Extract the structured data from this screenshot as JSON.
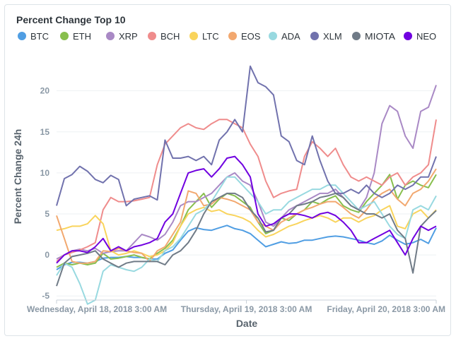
{
  "chart_data": {
    "type": "line",
    "title": "Percent Change Top 10",
    "xlabel": "Date",
    "ylabel": "Percent Change 24h",
    "ylim": [
      -5.5,
      23.5
    ],
    "y_ticks": [
      -5,
      0,
      5,
      10,
      15,
      20
    ],
    "x_ticks": [
      {
        "x": 0,
        "label": "Wednesday, April 18, 2018 3:00 AM"
      },
      {
        "x": 24,
        "label": "Thursday, April 19, 2018 3:00 AM"
      },
      {
        "x": 48,
        "label": "Friday, April 20, 2018 3:00 AM"
      }
    ],
    "x_range": [
      0,
      48
    ],
    "grid": true,
    "legend_position": "top",
    "series": [
      {
        "name": "BTC",
        "color": "#509ee3",
        "values": [
          -1.8,
          -1.2,
          -0.9,
          -0.9,
          -1.0,
          -0.8,
          -0.4,
          -0.3,
          -0.3,
          -0.2,
          -0.3,
          -0.3,
          -0.5,
          -0.5,
          0.2,
          0.6,
          1.8,
          2.9,
          3.3,
          3.1,
          3.0,
          3.3,
          3.6,
          3.2,
          3.0,
          2.6,
          1.8,
          1.0,
          1.3,
          1.6,
          1.4,
          1.5,
          1.8,
          1.8,
          2.0,
          2.2,
          2.3,
          2.2,
          2.0,
          1.8,
          1.5,
          1.3,
          1.7,
          2.4,
          1.8,
          1.3,
          1.5,
          1.9,
          1.4,
          3.3
        ]
      },
      {
        "name": "ETH",
        "color": "#88bf4d",
        "values": [
          -1.5,
          -1.0,
          -1.2,
          -1.0,
          -1.2,
          -1.0,
          0.2,
          -0.5,
          -0.4,
          -0.2,
          0.0,
          -0.3,
          -0.5,
          0.2,
          0.8,
          1.8,
          3.5,
          5.5,
          6.5,
          7.5,
          5.8,
          6.8,
          7.5,
          7.2,
          6.5,
          5.8,
          4.0,
          2.6,
          3.0,
          4.5,
          4.2,
          5.0,
          5.5,
          6.5,
          6.2,
          6.8,
          7.2,
          6.0,
          5.5,
          5.2,
          6.5,
          7.5,
          8.5,
          9.8,
          6.8,
          8.5,
          9.0,
          8.5,
          8.2,
          9.8
        ]
      },
      {
        "name": "XRP",
        "color": "#a989c5",
        "values": [
          -0.5,
          0.0,
          0.5,
          0.7,
          0.5,
          0.8,
          0.2,
          0.4,
          0.5,
          0.5,
          1.5,
          2.5,
          2.2,
          1.8,
          2.5,
          4.0,
          6.0,
          6.5,
          6.5,
          7.0,
          7.5,
          8.5,
          9.5,
          10.0,
          9.0,
          8.5,
          6.5,
          4.0,
          3.5,
          4.5,
          5.5,
          6.0,
          6.5,
          7.0,
          7.5,
          7.5,
          8.0,
          7.0,
          6.0,
          5.5,
          7.0,
          10.0,
          16.0,
          18.2,
          17.5,
          14.5,
          13.0,
          17.5,
          18.0,
          20.7
        ]
      },
      {
        "name": "BCH",
        "color": "#ef8c8c",
        "values": [
          -0.8,
          0.0,
          0.3,
          0.6,
          1.0,
          1.5,
          5.5,
          7.0,
          6.5,
          6.5,
          6.6,
          6.8,
          7.0,
          11.0,
          13.5,
          14.5,
          15.5,
          16.0,
          15.5,
          15.3,
          16.0,
          16.5,
          16.5,
          16.0,
          15.5,
          13.5,
          12.0,
          9.0,
          7.0,
          7.5,
          7.8,
          8.0,
          12.0,
          13.8,
          13.0,
          12.0,
          13.0,
          11.0,
          9.5,
          9.0,
          9.5,
          9.0,
          8.5,
          9.5,
          10.0,
          8.5,
          9.5,
          10.0,
          11.0,
          16.5
        ]
      },
      {
        "name": "LTC",
        "color": "#f9d45c",
        "values": [
          3.0,
          3.2,
          3.5,
          3.5,
          3.8,
          4.8,
          3.8,
          0.5,
          0.0,
          0.2,
          0.5,
          0.2,
          -0.2,
          0.0,
          0.5,
          1.5,
          3.5,
          5.0,
          5.5,
          5.8,
          5.3,
          5.5,
          5.0,
          4.8,
          4.5,
          4.0,
          3.0,
          2.2,
          2.5,
          3.0,
          3.5,
          3.8,
          4.2,
          4.5,
          4.8,
          4.5,
          4.0,
          4.5,
          4.5,
          4.0,
          4.5,
          4.8,
          5.5,
          6.0,
          3.5,
          3.2,
          5.0,
          5.5,
          4.5,
          5.5
        ]
      },
      {
        "name": "EOS",
        "color": "#f2a86f",
        "values": [
          4.8,
          2.0,
          -0.8,
          -1.0,
          -1.0,
          -0.8,
          0.5,
          0.4,
          0.8,
          0.5,
          0.3,
          0.2,
          -0.8,
          0.5,
          1.0,
          2.5,
          4.0,
          7.8,
          7.5,
          6.0,
          6.2,
          7.0,
          6.8,
          6.5,
          6.0,
          5.5,
          4.0,
          3.5,
          3.0,
          4.0,
          4.5,
          5.0,
          5.5,
          5.8,
          6.2,
          6.5,
          6.5,
          5.8,
          5.0,
          4.5,
          5.5,
          6.8,
          7.5,
          8.0,
          6.8,
          6.0,
          7.5,
          8.0,
          9.0,
          10.5
        ]
      },
      {
        "name": "ADA",
        "color": "#98d9e0",
        "values": [
          -2.5,
          -1.0,
          -1.5,
          -3.5,
          -6.0,
          -5.5,
          -2.0,
          -1.2,
          -1.5,
          -1.8,
          -2.0,
          -1.5,
          -0.5,
          -0.8,
          0.5,
          1.0,
          2.0,
          3.5,
          5.0,
          5.5,
          6.5,
          8.0,
          9.5,
          9.5,
          8.5,
          7.5,
          6.5,
          5.0,
          5.5,
          5.5,
          6.5,
          7.0,
          7.5,
          8.0,
          8.0,
          8.5,
          8.5,
          7.5,
          6.5,
          5.5,
          6.0,
          6.5,
          5.0,
          3.5,
          2.5,
          2.0,
          5.5,
          6.0,
          5.5,
          7.2
        ]
      },
      {
        "name": "XLM",
        "color": "#7172ad",
        "values": [
          6.0,
          9.3,
          9.8,
          10.8,
          10.2,
          9.2,
          8.8,
          9.7,
          9.2,
          6.0,
          6.8,
          7.0,
          7.2,
          6.7,
          14.0,
          11.8,
          11.8,
          12.0,
          11.5,
          12.0,
          11.0,
          14.0,
          15.0,
          16.5,
          15.0,
          23.0,
          21.0,
          20.5,
          19.5,
          14.5,
          13.8,
          11.5,
          11.0,
          14.5,
          11.5,
          9.0,
          7.5,
          7.5,
          8.0,
          7.5,
          8.5,
          7.5,
          7.0,
          7.5,
          8.5,
          8.0,
          8.5,
          9.5,
          9.5,
          12.0
        ]
      },
      {
        "name": "MIOTA",
        "color": "#707b87",
        "values": [
          -3.8,
          -1.0,
          -0.2,
          0.0,
          0.2,
          0.5,
          -0.5,
          -1.0,
          -1.5,
          -1.0,
          -0.8,
          -0.8,
          -0.8,
          -0.8,
          -1.2,
          0.0,
          0.5,
          1.5,
          3.0,
          5.0,
          6.5,
          7.0,
          7.5,
          7.5,
          7.0,
          5.5,
          4.5,
          2.8,
          3.0,
          4.5,
          5.0,
          6.0,
          6.2,
          6.5,
          7.0,
          7.2,
          7.5,
          7.0,
          6.0,
          5.5,
          5.0,
          5.0,
          4.5,
          5.0,
          3.0,
          2.0,
          -2.2,
          3.5,
          4.5,
          5.4
        ]
      },
      {
        "name": "NEO",
        "color": "#7000e0",
        "values": [
          -1.0,
          0.0,
          0.5,
          0.5,
          0.3,
          1.0,
          2.0,
          0.5,
          1.0,
          0.5,
          1.0,
          1.2,
          1.5,
          2.0,
          4.0,
          5.0,
          7.5,
          10.0,
          10.3,
          10.5,
          9.5,
          10.5,
          11.8,
          12.0,
          11.0,
          9.5,
          5.0,
          3.5,
          3.8,
          4.5,
          5.0,
          5.0,
          4.8,
          4.5,
          5.0,
          5.2,
          4.8,
          4.0,
          3.0,
          1.5,
          1.5,
          2.0,
          2.5,
          3.0,
          1.5,
          0.0,
          2.0,
          3.5,
          3.0,
          3.5
        ]
      }
    ]
  }
}
